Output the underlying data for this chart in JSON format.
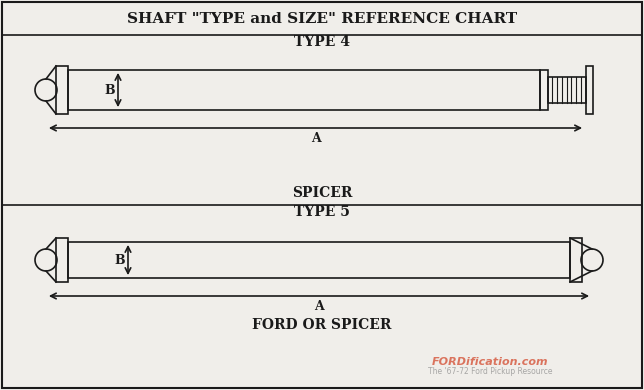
{
  "title": "SHAFT \"TYPE and SIZE\" REFERENCE CHART",
  "type4_label": "TYPE 4",
  "type5_label": "TYPE 5",
  "spicer_label": "SPICER",
  "ford_spicer_label": "FORD OR SPICER",
  "watermark_line1": "FORDification.com",
  "watermark_line2": "The '67-72 Ford Pickup Resource",
  "bg_color": "#f0eeea",
  "line_color": "#1a1a1a",
  "title_bg": "#ffffff",
  "border_color": "#333333",
  "dim_label_A": "A",
  "dim_label_B": "B"
}
